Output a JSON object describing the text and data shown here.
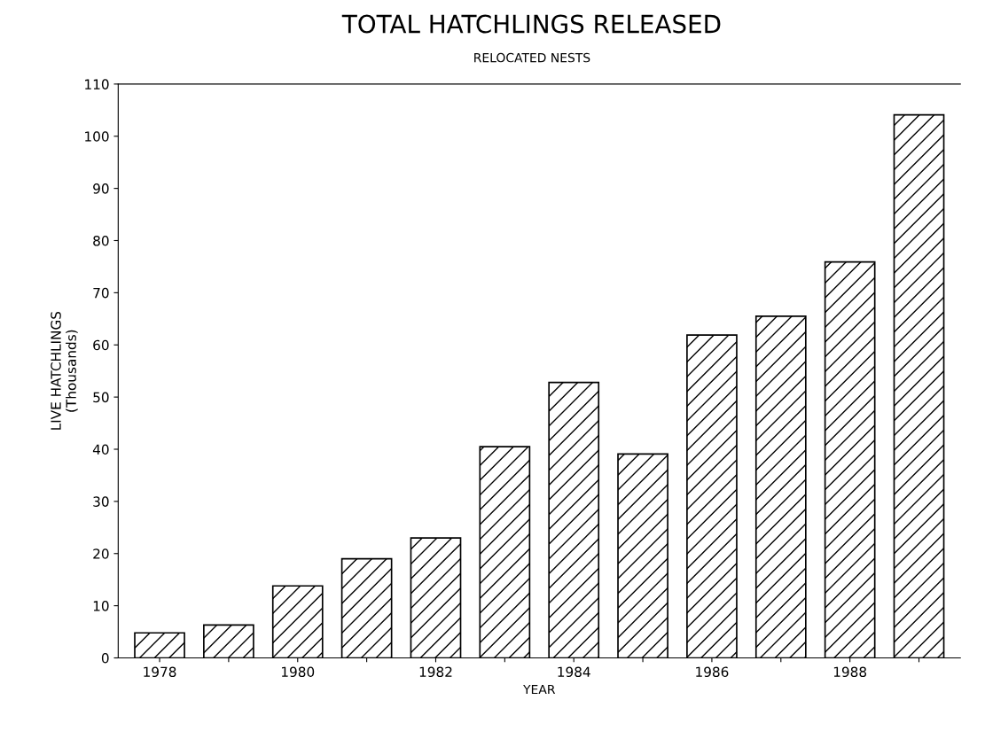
{
  "chart_data": {
    "type": "bar",
    "title": "TOTAL HATCHLINGS RELEASED",
    "subtitle": "RELOCATED NESTS",
    "xlabel": "YEAR",
    "ylabel": "LIVE HATCHLINGS\n(Thousands)",
    "categories": [
      "1978",
      null,
      "1980",
      null,
      "1982",
      null,
      "1984",
      null,
      "1986",
      null,
      "1988",
      null
    ],
    "values": [
      4.8,
      6.3,
      13.8,
      19,
      23,
      40.5,
      52.8,
      39.1,
      61.9,
      65.5,
      75.9,
      104.1
    ],
    "color": "#000000",
    "ylim": [
      0,
      110
    ],
    "yticks": [
      0,
      10,
      20,
      30,
      40,
      50,
      60,
      70,
      80,
      90,
      100,
      110
    ],
    "grid": false
  }
}
